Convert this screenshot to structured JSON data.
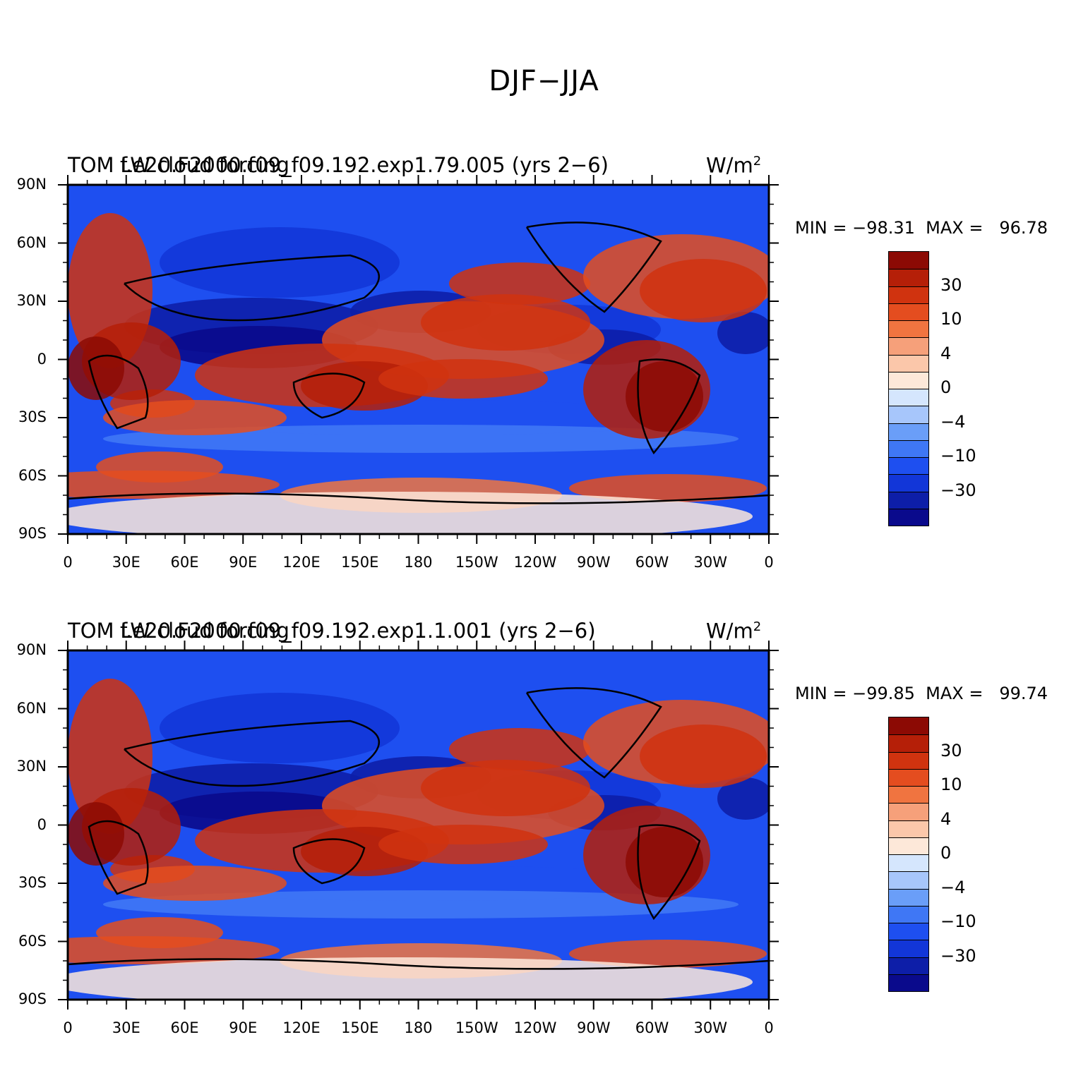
{
  "title": "DJF−JJA",
  "colors": {
    "levels": [
      "#0a0a8c",
      "#0d1ea8",
      "#1236d8",
      "#1e4ff0",
      "#3f77f5",
      "#6a9ef8",
      "#a7c6fb",
      "#d5e6fd",
      "#fde8d9",
      "#fbc7aa",
      "#f6a07a",
      "#f07440",
      "#e44d1f",
      "#d0330f",
      "#b51f08",
      "#8c0a04"
    ],
    "coast": "#000000"
  },
  "colorbar_labels": [
    "30",
    "10",
    "4",
    "0",
    "−4",
    "−10",
    "−30"
  ],
  "x_ticks": [
    "0",
    "30E",
    "60E",
    "90E",
    "120E",
    "150E",
    "180",
    "150W",
    "120W",
    "90W",
    "60W",
    "30W",
    "0"
  ],
  "y_ticks": [
    "90N",
    "60N",
    "30N",
    "0",
    "30S",
    "60S",
    "90S"
  ],
  "panels": [
    {
      "left_string": "TOM LW cloud forcing",
      "center_string": "f.e20.F2000.f09_f09.192.exp1.79.005 (yrs 2−6)",
      "right_string": "W/m",
      "right_sup": "2",
      "minmax": "MIN = −98.31  MAX =   96.78"
    },
    {
      "left_string": "TOM LW cloud forcing",
      "center_string": "f.e20.F2000.f09_f09.192.exp1.1.001 (yrs 2−6)",
      "right_string": "W/m",
      "right_sup": "2",
      "minmax": "MIN = −99.85  MAX =   99.74"
    }
  ]
}
